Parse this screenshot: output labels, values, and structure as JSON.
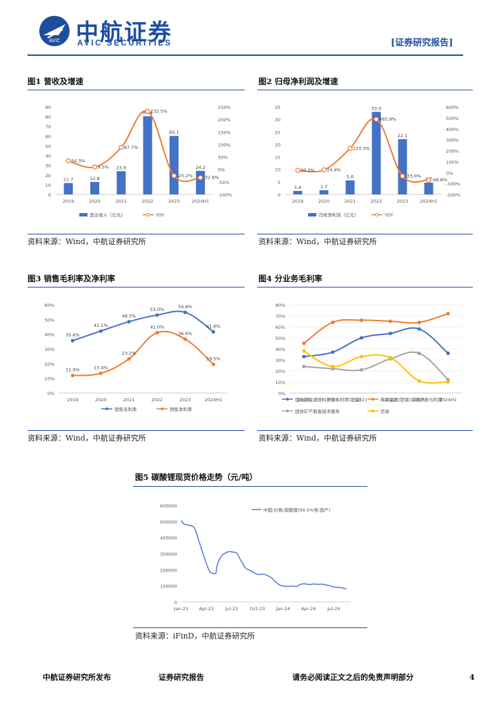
{
  "header": {
    "brand_cn": "中航证券",
    "brand_en": "AVIC SECURITIES",
    "logo_text": "AVIC",
    "doc_tag": "[证券研究报告]"
  },
  "figures": {
    "fig1": {
      "title": "图1  营收及增速",
      "source": "资料来源：Wind，中航证券研究所"
    },
    "fig2": {
      "title": "图2  归母净利润及增速",
      "source": "资料来源：Wind，中航证券研究所"
    },
    "fig3": {
      "title": "图3  销售毛利率及净利率",
      "source": "资料来源：Wind，中航证券研究所"
    },
    "fig4": {
      "title": "图4  分业务毛利率",
      "source": "资料来源：Wind，中航证券研究所"
    },
    "fig5": {
      "title": "图5  碳酸锂现货价格走势（元/吨）",
      "source": "资料来源：iFinD，中航证券研究所"
    }
  },
  "footer": {
    "left": "中航证券研究所发布",
    "middle": "证券研究报告",
    "right": "请务必阅读正文之后的免责声明部分",
    "page": "4"
  },
  "chart_data": [
    {
      "id": "fig1",
      "type": "bar+line",
      "categories": [
        "2019",
        "2020",
        "2021",
        "2022",
        "2023",
        "2024H1"
      ],
      "series": [
        {
          "name": "营业收入（亿元）",
          "type": "bar",
          "axis": "left",
          "color": "#4472c4",
          "values": [
            11.7,
            12.8,
            23.9,
            80.4,
            60.1,
            24.2
          ],
          "labels": [
            "11.7",
            "12.8",
            "23.9",
            "80.4",
            "60.1",
            "24.2"
          ]
        },
        {
          "name": "YOY",
          "type": "line",
          "axis": "right",
          "color": "#ed7d31",
          "values": [
            34.3,
            9.5,
            87.7,
            232.5,
            -25.2,
            -32.8
          ],
          "labels": [
            "34.3%",
            "9.5%",
            "87.7%",
            "232.5%",
            "-25.2%",
            "-32.8%"
          ]
        }
      ],
      "left_axis": {
        "min": 0,
        "max": 90,
        "step": 10,
        "ticks": [
          "0",
          "10",
          "20",
          "30",
          "40",
          "50",
          "60",
          "70",
          "80",
          "90"
        ]
      },
      "right_axis": {
        "min": -100,
        "max": 250,
        "step": 50,
        "ticks": [
          "-100%",
          "-50%",
          "0%",
          "50%",
          "100%",
          "150%",
          "200%",
          "250%"
        ]
      },
      "legend": "bottom"
    },
    {
      "id": "fig2",
      "type": "bar+line",
      "categories": [
        "2019",
        "2020",
        "2021",
        "2022",
        "2023",
        "2024H1"
      ],
      "series": [
        {
          "name": "归母净利润（亿元）",
          "type": "bar",
          "axis": "left",
          "color": "#4472c4",
          "values": [
            1.4,
            1.7,
            5.6,
            33.0,
            22.1,
            4.7
          ],
          "labels": [
            "1.4",
            "1.7",
            "5.6",
            "33.0",
            "22.1",
            "4.7"
          ]
        },
        {
          "name": "YOY",
          "type": "line",
          "axis": "right",
          "color": "#ed7d31",
          "values": [
            20.3,
            24.4,
            220.3,
            485.9,
            -33.0,
            -68.8
          ],
          "labels": [
            "20.3%",
            "24.4%",
            "220.3%",
            "485.9%",
            "-33.0%",
            "-68.8%"
          ]
        }
      ],
      "left_axis": {
        "min": 0,
        "max": 35,
        "step": 5,
        "ticks": [
          "0",
          "5",
          "10",
          "15",
          "20",
          "25",
          "30",
          "35"
        ]
      },
      "right_axis": {
        "min": -200,
        "max": 600,
        "step": 100,
        "ticks": [
          "-200%",
          "-100%",
          "0%",
          "100%",
          "200%",
          "300%",
          "400%",
          "500%",
          "600%"
        ]
      },
      "legend": "bottom"
    },
    {
      "id": "fig3",
      "type": "line",
      "categories": [
        "2019",
        "2020",
        "2021",
        "2022",
        "2023",
        "2024H1"
      ],
      "series": [
        {
          "name": "销售毛利率",
          "color": "#4472c4",
          "values": [
            35.6,
            42.1,
            48.5,
            53.0,
            54.8,
            41.6
          ],
          "labels": [
            "35.6%",
            "42.1%",
            "48.5%",
            "53.0%",
            "54.8%",
            "41.6%"
          ]
        },
        {
          "name": "销售净利率",
          "color": "#ed7d31",
          "values": [
            11.9,
            13.4,
            23.2,
            41.0,
            36.6,
            19.5
          ],
          "labels": [
            "11.9%",
            "13.4%",
            "23.2%",
            "41.0%",
            "36.6%",
            "19.5%"
          ]
        }
      ],
      "left_axis": {
        "min": 0,
        "max": 60,
        "step": 10,
        "ticks": [
          "0%",
          "10%",
          "20%",
          "30%",
          "40%",
          "50%",
          "60%"
        ]
      },
      "legend": "bottom"
    },
    {
      "id": "fig4",
      "type": "line",
      "categories": [
        "2019",
        "2020",
        "2021",
        "2022",
        "2023",
        "2024H1"
      ],
      "series": [
        {
          "name": "锂电新能源原料开发与利用(锂盐)",
          "color": "#4472c4",
          "values": [
            33,
            37,
            50,
            54,
            58,
            36
          ]
        },
        {
          "name": "稀有金属(铯铷)资源开发与利用",
          "color": "#ed7d31",
          "values": [
            45,
            64,
            66,
            65,
            64,
            72
          ]
        },
        {
          "name": "固体矿产勘查技术服务",
          "color": "#a5a5a5",
          "values": [
            24,
            22,
            21,
            31,
            36,
            12
          ]
        },
        {
          "name": "贸易",
          "color": "#ffc000",
          "values": [
            38,
            24,
            33,
            32,
            11,
            10
          ]
        }
      ],
      "left_axis": {
        "min": 0,
        "max": 80,
        "step": 10,
        "ticks": [
          "0%",
          "10%",
          "20%",
          "30%",
          "40%",
          "50%",
          "60%",
          "70%",
          "80%"
        ]
      },
      "legend": "bottom"
    },
    {
      "id": "fig5",
      "type": "line",
      "x_ticks": [
        "Jan-23",
        "Apr-23",
        "Jul-23",
        "Oct-23",
        "Jan-24",
        "Apr-24",
        "Jul-24"
      ],
      "series": [
        {
          "name": "中国:价格:碳酸锂(99.5%电:国产)",
          "color": "#5b7fd6",
          "x": [
            "2023-01-01",
            "2023-01-10",
            "2023-01-25",
            "2023-02-10",
            "2023-02-20",
            "2023-03-05",
            "2023-03-20",
            "2023-04-05",
            "2023-04-15",
            "2023-04-25",
            "2023-05-05",
            "2023-05-10",
            "2023-05-25",
            "2023-06-05",
            "2023-06-20",
            "2023-07-05",
            "2023-07-20",
            "2023-08-05",
            "2023-08-20",
            "2023-09-05",
            "2023-09-20",
            "2023-10-05",
            "2023-10-20",
            "2023-11-05",
            "2023-11-20",
            "2023-12-05",
            "2023-12-20",
            "2024-01-05",
            "2024-01-20",
            "2024-02-05",
            "2024-02-20",
            "2024-03-05",
            "2024-03-20",
            "2024-04-05",
            "2024-04-20",
            "2024-05-05",
            "2024-05-20",
            "2024-06-05",
            "2024-06-20",
            "2024-07-05",
            "2024-07-20",
            "2024-08-05",
            "2024-08-15"
          ],
          "values": [
            505000,
            485000,
            478000,
            470000,
            450000,
            380000,
            300000,
            220000,
            185000,
            178000,
            180000,
            230000,
            285000,
            300000,
            312000,
            310000,
            300000,
            250000,
            210000,
            195000,
            180000,
            170000,
            172000,
            165000,
            150000,
            125000,
            105000,
            98000,
            97000,
            98000,
            97000,
            110000,
            112000,
            108000,
            111000,
            109000,
            110000,
            105000,
            98000,
            92000,
            90000,
            85000,
            80000
          ]
        }
      ],
      "left_axis": {
        "min": 0,
        "max": 600000,
        "step": 100000,
        "ticks": [
          "0",
          "100000",
          "200000",
          "300000",
          "400000",
          "500000",
          "600000"
        ]
      },
      "legend": "top-right"
    }
  ]
}
